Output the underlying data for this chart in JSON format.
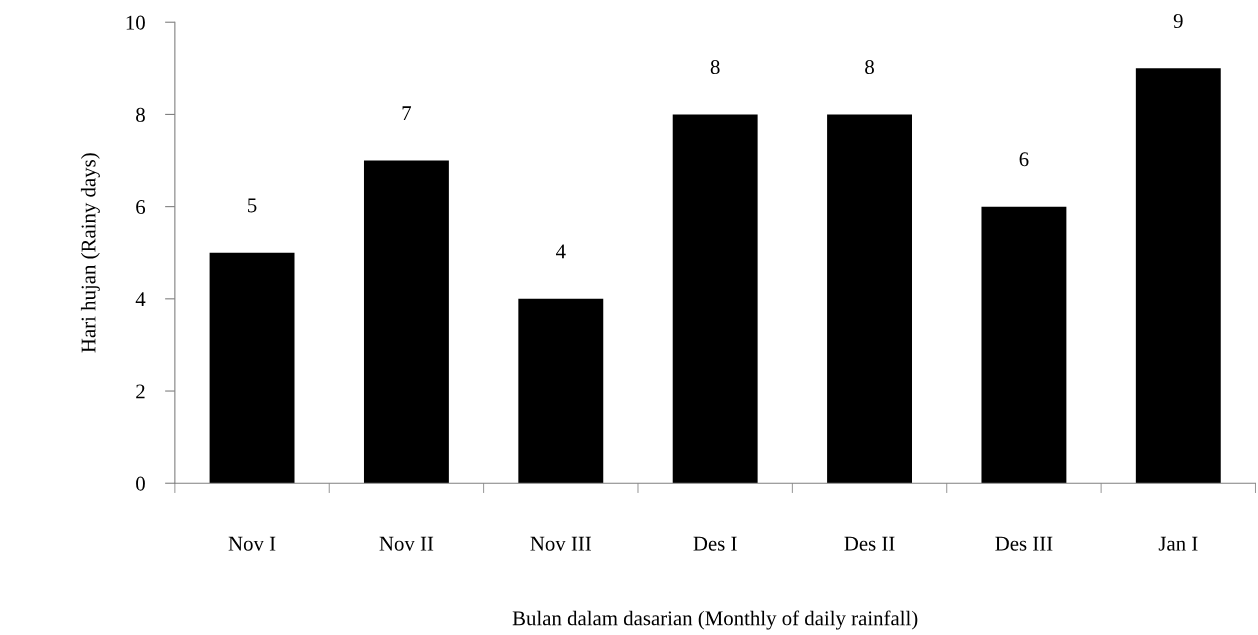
{
  "chart_data": {
    "type": "bar",
    "categories": [
      "Nov I",
      "Nov II",
      "Nov III",
      "Des I",
      "Des II",
      "Des III",
      "Jan I"
    ],
    "values": [
      5,
      7,
      4,
      8,
      8,
      6,
      9
    ],
    "color": "#000000",
    "xlabel": "Bulan dalam dasarian (Monthly of daily rainfall)",
    "ylabel": "Hari hujan (Rainy days)",
    "ylim": [
      0,
      10
    ],
    "yticks": [
      0,
      2,
      4,
      6,
      8,
      10
    ],
    "data_labels": true,
    "grid": false,
    "legend": false
  }
}
